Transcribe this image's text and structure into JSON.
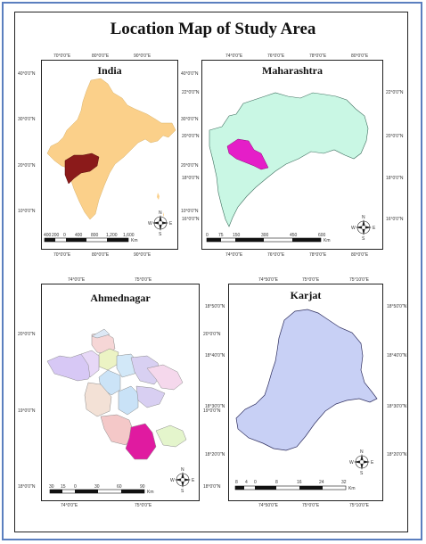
{
  "title": "Location Map of Study Area",
  "colors": {
    "border_outer": "#5b7fbf",
    "india_fill": "#fbd08a",
    "maharashtra_highlight": "#8b1a1a",
    "maharashtra_fill": "#c9f7e4",
    "ahmednagar_highlight": "#e51ec8",
    "karjat_fill": "#c8d0f5",
    "karjat_highlight": "#e01aa0"
  },
  "panels": {
    "india": {
      "title": "India",
      "top_ticks": [
        "70°0'0\"E",
        "80°0'0\"E",
        "90°0'0\"E"
      ],
      "bottom_ticks": [
        "70°0'0\"E",
        "80°0'0\"E",
        "90°0'0\"E"
      ],
      "left_ticks": [
        "40°0'0\"N",
        "30°0'0\"N",
        "20°0'0\"N",
        "10°0'0\"N"
      ],
      "right_ticks": [
        "40°0'0\"N",
        "30°0'0\"N",
        "20°0'0\"N",
        "10°0'0\"N"
      ],
      "scale_labels": [
        "400",
        "200",
        "0",
        "400",
        "800",
        "1,200",
        "1,600"
      ],
      "scale_unit": "Km"
    },
    "maharashtra": {
      "title": "Maharashtra",
      "top_ticks": [
        "74°0'0\"E",
        "76°0'0\"E",
        "78°0'0\"E",
        "80°0'0\"E"
      ],
      "bottom_ticks": [
        "74°0'0\"E",
        "76°0'0\"E",
        "78°0'0\"E",
        "80°0'0\"E"
      ],
      "left_ticks": [
        "22°0'0\"N",
        "20°0'0\"N",
        "18°0'0\"N",
        "16°0'0\"N"
      ],
      "right_ticks": [
        "22°0'0\"N",
        "20°0'0\"N",
        "18°0'0\"N",
        "16°0'0\"N"
      ],
      "scale_labels": [
        "0",
        "75",
        "150",
        "300",
        "450",
        "600"
      ],
      "scale_unit": "Km"
    },
    "ahmednagar": {
      "title": "Ahmednagar",
      "top_ticks": [
        "74°0'0\"E",
        "75°0'0\"E"
      ],
      "bottom_ticks": [
        "74°0'0\"E",
        "75°0'0\"E"
      ],
      "left_ticks": [
        "20°0'0\"N",
        "19°0'0\"N",
        "18°0'0\"N"
      ],
      "right_ticks": [
        "20°0'0\"N",
        "19°0'0\"N",
        "18°0'0\"N"
      ],
      "scale_labels": [
        "30",
        "15",
        "0",
        "30",
        "60",
        "90"
      ],
      "scale_unit": "Km"
    },
    "karjat": {
      "title": "Karjat",
      "top_ticks": [
        "74°50'0\"E",
        "75°0'0\"E",
        "75°10'0\"E"
      ],
      "bottom_ticks": [
        "74°50'0\"E",
        "75°0'0\"E",
        "75°10'0\"E"
      ],
      "left_ticks": [
        "18°50'0\"N",
        "18°40'0\"N",
        "18°30'0\"N",
        "18°20'0\"N"
      ],
      "right_ticks": [
        "18°50'0\"N",
        "18°40'0\"N",
        "18°30'0\"N",
        "18°20'0\"N"
      ],
      "scale_labels": [
        "8",
        "4",
        "0",
        "8",
        "16",
        "24",
        "32"
      ],
      "scale_unit": "Km"
    }
  },
  "compass": {
    "n": "N",
    "s": "S",
    "e": "E",
    "w": "W"
  }
}
